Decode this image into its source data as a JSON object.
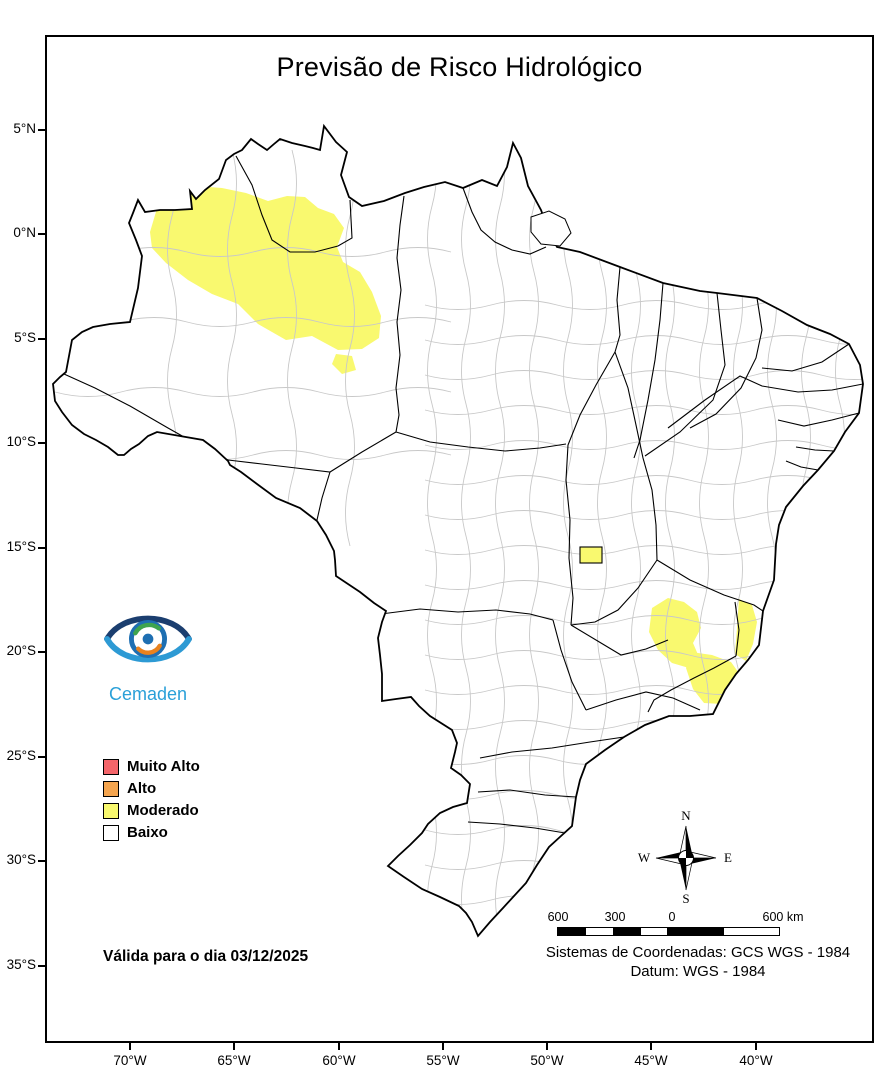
{
  "title": "Previsão de Risco Hidrológico",
  "axes": {
    "lat_ticks": [
      "5°N",
      "0°N",
      "5°S",
      "10°S",
      "15°S",
      "20°S",
      "25°S",
      "30°S",
      "35°S"
    ],
    "lon_ticks": [
      "70°W",
      "65°W",
      "60°W",
      "55°W",
      "50°W",
      "45°W",
      "40°W"
    ]
  },
  "legend": {
    "items": [
      {
        "label": "Muito Alto",
        "color": "#F4656A"
      },
      {
        "label": "Alto",
        "color": "#F5A54F"
      },
      {
        "label": "Moderado",
        "color": "#F9F96F"
      },
      {
        "label": "Baixo",
        "color": "#FFFFFF"
      }
    ]
  },
  "logo": {
    "name": "Cemaden"
  },
  "validity_text": "Válida para o dia 03/12/2025",
  "compass": {
    "n": "N",
    "e": "E",
    "s": "S",
    "w": "W"
  },
  "scalebar": {
    "labels": [
      "600",
      "300",
      "0",
      "600 km"
    ]
  },
  "datum": {
    "line1": "Sistemas de Coordenadas: GCS WGS - 1984",
    "line2": "Datum: WGS - 1984"
  },
  "map_colors": {
    "boundary_state": "#000000",
    "boundary_municipal": "#C8C8C8",
    "land": "#FFFFFF"
  }
}
